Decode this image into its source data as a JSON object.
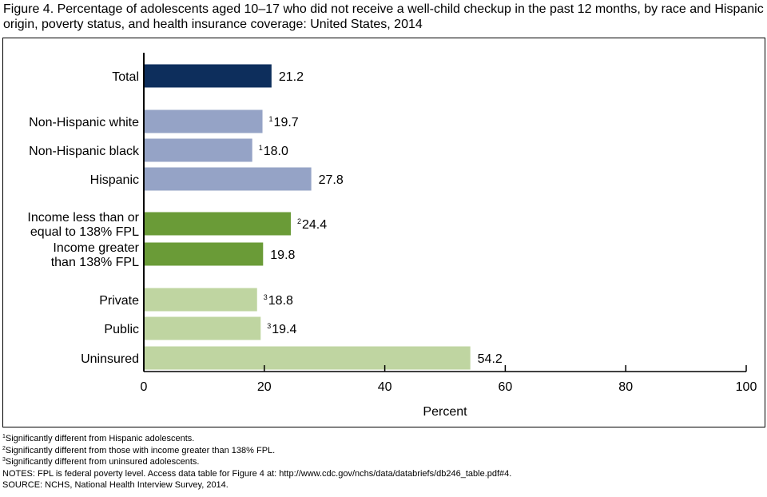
{
  "title": "Figure 4. Percentage of adolescents aged 10–17 who did not receive a well-child checkup in the past 12 months, by race and Hispanic origin, poverty status, and health insurance coverage: United States, 2014",
  "chart_data": {
    "type": "bar",
    "orientation": "horizontal",
    "xlabel": "Percent",
    "xlim": [
      0,
      100
    ],
    "xticks": [
      0,
      20,
      40,
      60,
      80,
      100
    ],
    "grid": false,
    "bars": [
      {
        "label": [
          "Total"
        ],
        "value": 21.2,
        "value_label": "21.2",
        "marker": "",
        "color": "#0d2e5c",
        "group": 0
      },
      {
        "label": [
          "Non-Hispanic white"
        ],
        "value": 19.7,
        "value_label": "19.7",
        "marker": "1",
        "color": "#95a3c6",
        "group": 1
      },
      {
        "label": [
          "Non-Hispanic black"
        ],
        "value": 18.0,
        "value_label": "18.0",
        "marker": "1",
        "color": "#95a3c6",
        "group": 1
      },
      {
        "label": [
          "Hispanic"
        ],
        "value": 27.8,
        "value_label": "27.8",
        "marker": "",
        "color": "#95a3c6",
        "group": 1
      },
      {
        "label": [
          "Income less than or",
          "equal to 138% FPL"
        ],
        "value": 24.4,
        "value_label": "24.4",
        "marker": "2",
        "color": "#6a9b37",
        "group": 2
      },
      {
        "label": [
          "Income greater",
          "than 138% FPL"
        ],
        "value": 19.8,
        "value_label": "19.8",
        "marker": "",
        "color": "#6a9b37",
        "group": 2
      },
      {
        "label": [
          "Private"
        ],
        "value": 18.8,
        "value_label": "18.8",
        "marker": "3",
        "color": "#bfd5a1",
        "group": 3
      },
      {
        "label": [
          "Public"
        ],
        "value": 19.4,
        "value_label": "19.4",
        "marker": "3",
        "color": "#bfd5a1",
        "group": 3
      },
      {
        "label": [
          "Uninsured"
        ],
        "value": 54.2,
        "value_label": "54.2",
        "marker": "",
        "color": "#bfd5a1",
        "group": 3
      }
    ]
  },
  "footnotes": [
    {
      "marker": "1",
      "text": "Significantly different from Hispanic adolescents."
    },
    {
      "marker": "2",
      "text": "Significantly different from those with income greater than 138% FPL."
    },
    {
      "marker": "3",
      "text": "Significantly different from uninsured adolescents."
    }
  ],
  "notes": "NOTES: FPL is federal poverty level. Access data table for Figure 4 at: http://www.cdc.gov/nchs/data/databriefs/db246_table.pdf#4.",
  "source": "SOURCE: NCHS, National Health Interview Survey, 2014."
}
